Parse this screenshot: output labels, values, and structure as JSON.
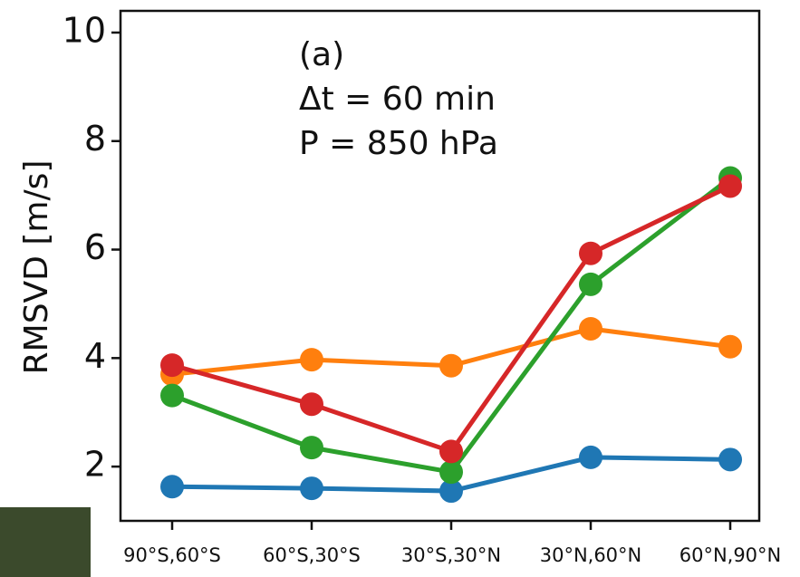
{
  "chart_data": {
    "type": "line",
    "annotations": [
      "(a)",
      "Δt = 60 min",
      "P = 850 hPa"
    ],
    "y_label": "RMSVD [m/s]",
    "categories": [
      "90°S,60°S",
      "60°S,30°S",
      "30°S,30°N",
      "30°N,60°N",
      "60°N,90°N"
    ],
    "series": [
      {
        "color": "#1f77b4",
        "values": [
          1.63,
          1.6,
          1.55,
          2.17,
          2.13
        ]
      },
      {
        "color": "#ff7f0e",
        "values": [
          3.7,
          3.97,
          3.86,
          4.54,
          4.21
        ]
      },
      {
        "color": "#2ca02c",
        "values": [
          3.31,
          2.35,
          1.9,
          5.36,
          7.32
        ]
      },
      {
        "color": "#d62728",
        "values": [
          3.87,
          3.15,
          2.28,
          5.93,
          7.17
        ]
      }
    ],
    "ylim": [
      1.0,
      10.4
    ],
    "yticks": [
      2,
      4,
      6,
      8,
      10
    ]
  }
}
